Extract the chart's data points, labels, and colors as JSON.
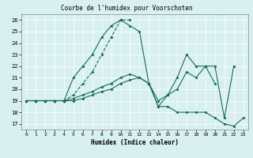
{
  "title": "Courbe de l'humidex pour Voorschoten",
  "xlabel": "Humidex (Indice chaleur)",
  "xlim": [
    -0.5,
    23.5
  ],
  "ylim": [
    16.5,
    26.5
  ],
  "yticks": [
    17,
    18,
    19,
    20,
    21,
    22,
    23,
    24,
    25,
    26
  ],
  "xticks": [
    0,
    1,
    2,
    3,
    4,
    5,
    6,
    7,
    8,
    9,
    10,
    11,
    12,
    13,
    14,
    15,
    16,
    17,
    18,
    19,
    20,
    21,
    22,
    23
  ],
  "bg_color": "#d8f0f0",
  "grid_color": "#ffffff",
  "line_color": "#1a6b5a",
  "line1_x": [
    0,
    1,
    2,
    3,
    4,
    5,
    6,
    7,
    8,
    9,
    10,
    11,
    12,
    13,
    14,
    15,
    16,
    17,
    18,
    19,
    20,
    21,
    22,
    23
  ],
  "line1_y": [
    19,
    19,
    19,
    19,
    19,
    21,
    22,
    23,
    24.5,
    25.5,
    26,
    25.5,
    25,
    20.5,
    18.5,
    18.5,
    18,
    18,
    18,
    18,
    17.5,
    17,
    16.8,
    17.5
  ],
  "line2_x": [
    0,
    1,
    2,
    3,
    4,
    5,
    6,
    7,
    8,
    9,
    10,
    11
  ],
  "line2_y": [
    19,
    19,
    19,
    19,
    19,
    19.5,
    20.5,
    21.5,
    23,
    24.5,
    26,
    26
  ],
  "line3_x": [
    0,
    1,
    2,
    3,
    4,
    5,
    6,
    7,
    8,
    9,
    10,
    11,
    12,
    13,
    14,
    15,
    16,
    17,
    18,
    19,
    20
  ],
  "line3_y": [
    19,
    19,
    19,
    19,
    19,
    19.2,
    19.5,
    19.8,
    20.2,
    20.5,
    21,
    21.3,
    21,
    20.5,
    18.5,
    19.5,
    21,
    23,
    22,
    22,
    20.5
  ],
  "line4_x": [
    0,
    1,
    2,
    3,
    4,
    5,
    6,
    7,
    8,
    9,
    10,
    11,
    12,
    13,
    14,
    15,
    16,
    17,
    18,
    19,
    20,
    21,
    22
  ],
  "line4_y": [
    19,
    19,
    19,
    19,
    19,
    19,
    19.2,
    19.5,
    19.8,
    20,
    20.5,
    20.8,
    21,
    20.5,
    19,
    19.5,
    20,
    21.5,
    21,
    22,
    22,
    17.5,
    22
  ]
}
